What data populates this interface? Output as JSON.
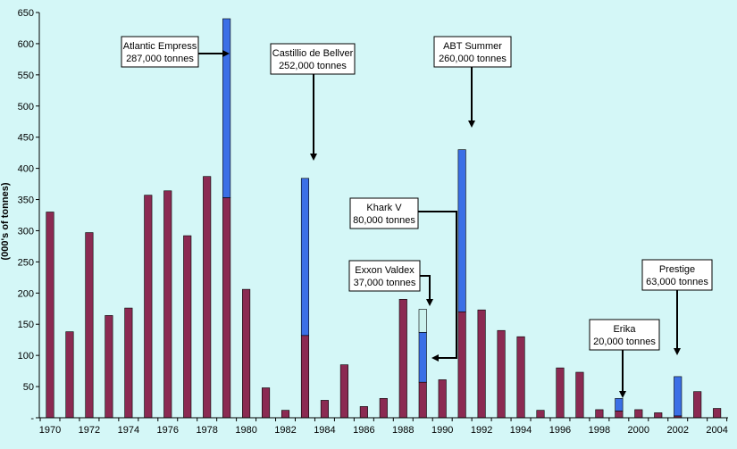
{
  "chart_data": {
    "type": "bar",
    "stacked": true,
    "title": "",
    "xlabel": "",
    "ylabel": "(000's of tonnes)",
    "ylim": [
      0,
      650
    ],
    "yticks": [
      0,
      50,
      100,
      150,
      200,
      250,
      300,
      350,
      400,
      450,
      500,
      550,
      600,
      650
    ],
    "ytick_labels": [
      "-",
      "50",
      "100",
      "150",
      "200",
      "250",
      "300",
      "350",
      "400",
      "450",
      "500",
      "550",
      "600",
      "650"
    ],
    "xtick_labels": [
      "1970",
      "1972",
      "1974",
      "1976",
      "1978",
      "1980",
      "1982",
      "1984",
      "1986",
      "1988",
      "1990",
      "1992",
      "1994",
      "1996",
      "1998",
      "2000",
      "2002",
      "2004"
    ],
    "grid": false,
    "legend": "none",
    "colors": {
      "base": "#8b2a52",
      "major_spill": "#3b6fe6",
      "exxon_valdez": "#ccf2ee",
      "background": "#d4f7f7"
    },
    "categories": [
      1970,
      1971,
      1972,
      1973,
      1974,
      1975,
      1976,
      1977,
      1978,
      1979,
      1980,
      1981,
      1982,
      1983,
      1984,
      1985,
      1986,
      1987,
      1988,
      1989,
      1990,
      1991,
      1992,
      1993,
      1994,
      1995,
      1996,
      1997,
      1998,
      1999,
      2000,
      2001,
      2002,
      2003,
      2004
    ],
    "series": [
      {
        "key": "base",
        "color": "#8b2a52",
        "values": [
          330,
          138,
          297,
          164,
          176,
          357,
          364,
          292,
          387,
          353,
          206,
          48,
          12,
          132,
          28,
          85,
          18,
          31,
          190,
          57,
          61,
          170,
          173,
          140,
          130,
          12,
          80,
          73,
          13,
          11,
          13,
          8,
          3,
          42,
          15
        ]
      },
      {
        "key": "major_spill",
        "color": "#3b6fe6",
        "values": [
          0,
          0,
          0,
          0,
          0,
          0,
          0,
          0,
          0,
          287,
          0,
          0,
          0,
          252,
          0,
          0,
          0,
          0,
          0,
          80,
          0,
          260,
          0,
          0,
          0,
          0,
          0,
          0,
          0,
          20,
          0,
          0,
          63,
          0,
          0
        ]
      },
      {
        "key": "exxon_valdez",
        "color": "#ccf2ee",
        "values": [
          0,
          0,
          0,
          0,
          0,
          0,
          0,
          0,
          0,
          0,
          0,
          0,
          0,
          0,
          0,
          0,
          0,
          0,
          0,
          37,
          0,
          0,
          0,
          0,
          0,
          0,
          0,
          0,
          0,
          0,
          0,
          0,
          0,
          0,
          0
        ]
      }
    ],
    "annotations": [
      {
        "line1": "Atlantic Empress",
        "line2": "287,000 tonnes",
        "year": 1979
      },
      {
        "line1": "Castillio de Bellver",
        "line2": "252,000 tonnes",
        "year": 1983
      },
      {
        "line1": "ABT Summer",
        "line2": "260,000 tonnes",
        "year": 1991
      },
      {
        "line1": "Khark V",
        "line2": "80,000 tonnes",
        "year": 1989
      },
      {
        "line1": "Exxon Valdex",
        "line2": "37,000 tonnes",
        "year": 1989
      },
      {
        "line1": "Erika",
        "line2": "20,000 tonnes",
        "year": 1999
      },
      {
        "line1": "Prestige",
        "line2": "63,000 tonnes",
        "year": 2002
      }
    ]
  }
}
